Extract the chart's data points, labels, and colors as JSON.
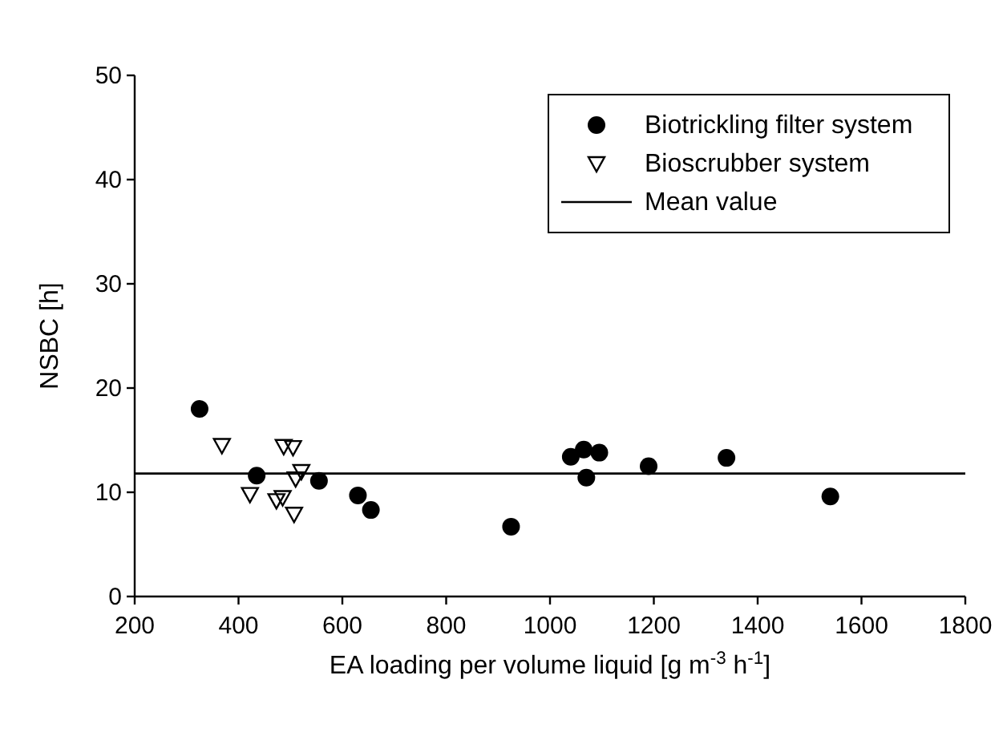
{
  "chart_data": {
    "type": "scatter",
    "xlabel": "EA loading per volume liquid [g m$^{-3}$ h$^{-1}$]",
    "ylabel": "NSBC [h]",
    "xlim": [
      200,
      1800
    ],
    "xticks": [
      200,
      400,
      600,
      800,
      1000,
      1200,
      1400,
      1600,
      1800
    ],
    "ylim": [
      0,
      50
    ],
    "yticks": [
      0,
      10,
      20,
      30,
      40,
      50
    ],
    "grid": false,
    "legend": "top right",
    "series": [
      {
        "name": "Biotrickling filter system",
        "color": "#000000",
        "marker": "circle",
        "x": [
          325,
          435,
          555,
          630,
          655,
          925,
          1040,
          1065,
          1070,
          1095,
          1190,
          1340,
          1540
        ],
        "values": [
          18,
          11.6,
          11.1,
          9.7,
          8.3,
          6.7,
          13.4,
          14.1,
          11.4,
          13.8,
          12.5,
          13.3,
          9.6
        ]
      },
      {
        "name": "Bioscrubber system",
        "color": "#000000",
        "marker": "triangle",
        "x": [
          368,
          422,
          473,
          485,
          487,
          505,
          507,
          510,
          521
        ],
        "values": [
          14.5,
          9.8,
          9.2,
          9.5,
          14.4,
          14.3,
          7.9,
          11.3,
          12
        ]
      }
    ],
    "ref_lines": [
      {
        "axis": "y",
        "value": 11.8,
        "label": "Mean value",
        "color": "#000000",
        "line_style": "solid"
      }
    ]
  }
}
